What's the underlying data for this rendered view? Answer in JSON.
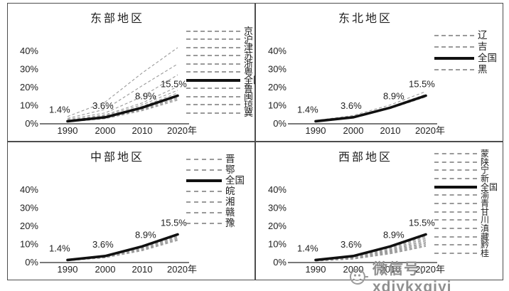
{
  "watermark": {
    "icon": "wechat-logo",
    "text": "微信号: xdjykxgjyj",
    "color": "#8f8f8f"
  },
  "colors": {
    "province_line": "#9a9a9a",
    "national_line": "#111111",
    "axis_line": "#4d4d4d",
    "label_text": "#222222"
  },
  "chart_data": [
    {
      "type": "line",
      "title": "东部地区",
      "x_labels": [
        "1990",
        "2000",
        "2010",
        "2020年"
      ],
      "y_ticks": [
        "40%",
        "30%",
        "20%",
        "10%",
        "0%"
      ],
      "ylim": [
        0,
        45
      ],
      "grid": false,
      "legend_position": "right",
      "point_labels": [
        "1.4%",
        "3.6%",
        "8.9%",
        "15.5%"
      ],
      "series": [
        {
          "name": "京",
          "style": "dashed",
          "values": [
            4.0,
            12.0,
            28.0,
            42.0
          ]
        },
        {
          "name": "沪",
          "style": "dashed",
          "values": [
            3.0,
            8.0,
            21.0,
            33.0
          ]
        },
        {
          "name": "津",
          "style": "dashed",
          "values": [
            2.5,
            6.0,
            15.0,
            27.0
          ]
        },
        {
          "name": "苏",
          "style": "dashed",
          "values": [
            2.0,
            5.0,
            11.5,
            20.5
          ]
        },
        {
          "name": "浙",
          "style": "dashed",
          "values": [
            1.8,
            4.5,
            10.5,
            18.5
          ]
        },
        {
          "name": "粤",
          "style": "dashed",
          "values": [
            1.6,
            4.0,
            9.6,
            17.0
          ]
        },
        {
          "name": "全国",
          "style": "bold",
          "values": [
            1.4,
            3.6,
            8.9,
            15.5
          ]
        },
        {
          "name": "鲁",
          "style": "dashed",
          "values": [
            1.3,
            3.4,
            8.4,
            14.8
          ]
        },
        {
          "name": "闽",
          "style": "dashed",
          "values": [
            1.2,
            3.2,
            8.0,
            14.2
          ]
        },
        {
          "name": "琼",
          "style": "dashed",
          "values": [
            1.1,
            3.0,
            7.6,
            13.6
          ]
        },
        {
          "name": "冀",
          "style": "dashed",
          "values": [
            1.0,
            2.8,
            7.2,
            13.0
          ]
        }
      ]
    },
    {
      "type": "line",
      "title": "东北地区",
      "x_labels": [
        "1990",
        "2000",
        "2010",
        "2020年"
      ],
      "y_ticks": [
        "40%",
        "30%",
        "20%",
        "10%",
        "0%"
      ],
      "ylim": [
        0,
        45
      ],
      "grid": false,
      "legend_position": "right",
      "point_labels": [
        "1.4%",
        "3.6%",
        "8.9%",
        "15.5%"
      ],
      "series": [
        {
          "name": "辽",
          "style": "dashed",
          "values": [
            1.8,
            4.6,
            10.4,
            17.8
          ]
        },
        {
          "name": "吉",
          "style": "dashed",
          "values": [
            1.5,
            3.9,
            9.4,
            16.2
          ]
        },
        {
          "name": "全国",
          "style": "bold",
          "values": [
            1.4,
            3.6,
            8.9,
            15.5
          ]
        },
        {
          "name": "黑",
          "style": "dashed",
          "values": [
            1.3,
            3.3,
            8.4,
            14.8
          ]
        }
      ]
    },
    {
      "type": "line",
      "title": "中部地区",
      "x_labels": [
        "1990",
        "2000",
        "2010",
        "2020年"
      ],
      "y_ticks": [
        "40%",
        "30%",
        "20%",
        "10%",
        "0%"
      ],
      "ylim": [
        0,
        45
      ],
      "grid": false,
      "legend_position": "right",
      "point_labels": [
        "1.4%",
        "3.6%",
        "8.9%",
        "15.5%"
      ],
      "series": [
        {
          "name": "晋",
          "style": "dashed",
          "values": [
            1.3,
            3.3,
            8.3,
            14.8
          ]
        },
        {
          "name": "鄂",
          "style": "dashed",
          "values": [
            1.25,
            3.2,
            8.0,
            14.3
          ]
        },
        {
          "name": "全国",
          "style": "bold",
          "values": [
            1.4,
            3.6,
            8.9,
            15.5
          ]
        },
        {
          "name": "皖",
          "style": "dashed",
          "values": [
            1.15,
            3.0,
            7.6,
            13.8
          ]
        },
        {
          "name": "湘",
          "style": "dashed",
          "values": [
            1.1,
            2.9,
            7.2,
            13.2
          ]
        },
        {
          "name": "赣",
          "style": "dashed",
          "values": [
            1.05,
            2.7,
            6.9,
            12.7
          ]
        },
        {
          "name": "豫",
          "style": "dashed",
          "values": [
            1.0,
            2.6,
            6.5,
            12.2
          ]
        }
      ]
    },
    {
      "type": "line",
      "title": "西部地区",
      "x_labels": [
        "1990",
        "2000",
        "2010",
        "2020年"
      ],
      "y_ticks": [
        "40%",
        "30%",
        "20%",
        "10%",
        "0%"
      ],
      "ylim": [
        0,
        45
      ],
      "grid": false,
      "legend_position": "right",
      "point_labels": [
        "1.4%",
        "3.6%",
        "8.9%",
        "15.5%"
      ],
      "series": [
        {
          "name": "蒙",
          "style": "dashed",
          "values": [
            1.45,
            3.7,
            9.2,
            15.9
          ]
        },
        {
          "name": "陕",
          "style": "dashed",
          "values": [
            1.4,
            3.5,
            8.8,
            15.2
          ]
        },
        {
          "name": "宁",
          "style": "dashed",
          "values": [
            1.3,
            3.4,
            8.5,
            14.6
          ]
        },
        {
          "name": "新",
          "style": "dashed",
          "values": [
            1.25,
            3.2,
            8.1,
            14.0
          ]
        },
        {
          "name": "全国",
          "style": "bold",
          "values": [
            1.4,
            3.6,
            8.9,
            15.5
          ]
        },
        {
          "name": "渝",
          "style": "dashed",
          "values": [
            1.2,
            3.0,
            7.6,
            13.3
          ]
        },
        {
          "name": "青",
          "style": "dashed",
          "values": [
            1.1,
            2.8,
            7.1,
            12.6
          ]
        },
        {
          "name": "甘",
          "style": "dashed",
          "values": [
            1.05,
            2.6,
            6.7,
            11.9
          ]
        },
        {
          "name": "川",
          "style": "dashed",
          "values": [
            1.0,
            2.5,
            6.3,
            11.2
          ]
        },
        {
          "name": "滇",
          "style": "dashed",
          "values": [
            0.95,
            2.3,
            5.9,
            10.6
          ]
        },
        {
          "name": "藏",
          "style": "dashed",
          "values": [
            0.9,
            2.2,
            5.5,
            10.0
          ]
        },
        {
          "name": "黔",
          "style": "dashed",
          "values": [
            0.85,
            2.0,
            5.1,
            9.4
          ]
        },
        {
          "name": "桂",
          "style": "dashed",
          "values": [
            0.8,
            1.9,
            4.8,
            8.9
          ]
        }
      ]
    }
  ]
}
